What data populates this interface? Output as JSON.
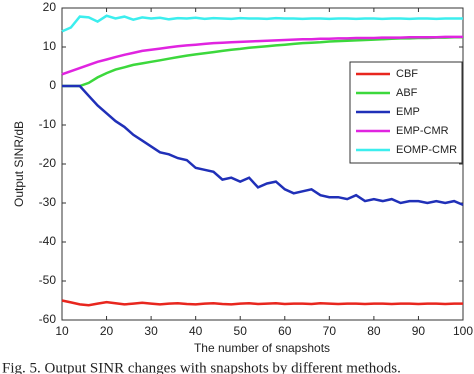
{
  "chart_data": {
    "type": "line",
    "caption": "Fig. 5. Output SINR changes with snapshots by different methods.",
    "xlabel": "The number of snapshots",
    "ylabel": "Output SINR/dB",
    "x": [
      10,
      12,
      14,
      16,
      18,
      20,
      22,
      24,
      26,
      28,
      30,
      32,
      34,
      36,
      38,
      40,
      42,
      44,
      46,
      48,
      50,
      52,
      54,
      56,
      58,
      60,
      62,
      64,
      66,
      68,
      70,
      72,
      74,
      76,
      78,
      80,
      82,
      84,
      86,
      88,
      90,
      92,
      94,
      96,
      98,
      100
    ],
    "xlim": [
      10,
      100
    ],
    "xticks": [
      10,
      20,
      30,
      40,
      50,
      60,
      70,
      80,
      90,
      100
    ],
    "ylim": [
      -60,
      20
    ],
    "yticks": [
      -60,
      -50,
      -40,
      -30,
      -20,
      -10,
      0,
      10,
      20
    ],
    "legend": "upper right",
    "series": [
      {
        "name": "CBF",
        "color": "#e8261e",
        "values": [
          -55,
          -55.5,
          -56,
          -56.2,
          -55.8,
          -55.4,
          -55.7,
          -56,
          -55.8,
          -55.6,
          -55.8,
          -56,
          -55.8,
          -55.7,
          -55.9,
          -56,
          -55.8,
          -55.7,
          -55.9,
          -56,
          -55.8,
          -55.7,
          -55.9,
          -55.8,
          -55.7,
          -55.9,
          -55.8,
          -55.8,
          -55.9,
          -55.7,
          -55.8,
          -55.9,
          -55.8,
          -55.8,
          -55.9,
          -55.8,
          -55.8,
          -55.9,
          -55.8,
          -55.8,
          -55.9,
          -55.8,
          -55.8,
          -55.9,
          -55.8,
          -55.8
        ]
      },
      {
        "name": "ABF",
        "color": "#3cd83c",
        "values": [
          0,
          0,
          0,
          0.8,
          2.2,
          3.3,
          4.2,
          4.8,
          5.4,
          5.8,
          6.2,
          6.6,
          7,
          7.4,
          7.8,
          8.1,
          8.4,
          8.7,
          9,
          9.3,
          9.5,
          9.8,
          10,
          10.2,
          10.4,
          10.6,
          10.8,
          11,
          11.1,
          11.2,
          11.4,
          11.5,
          11.6,
          11.7,
          11.8,
          11.9,
          12,
          12.1,
          12.2,
          12.2,
          12.3,
          12.3,
          12.4,
          12.4,
          12.5,
          12.5
        ]
      },
      {
        "name": "EMP",
        "color": "#2030b8",
        "values": [
          0,
          0,
          0,
          -2.5,
          -5,
          -7,
          -9,
          -10.5,
          -12.5,
          -14,
          -15.5,
          -17,
          -17.5,
          -18.5,
          -19,
          -21,
          -21.5,
          -22,
          -24,
          -23.5,
          -24.5,
          -23.5,
          -26,
          -25,
          -24.5,
          -26.5,
          -27.5,
          -27,
          -26.5,
          -28,
          -28.5,
          -28.5,
          -29,
          -28,
          -29.5,
          -29,
          -29.5,
          -29,
          -30,
          -29.5,
          -29.5,
          -30,
          -29.5,
          -30,
          -29.5,
          -30.5
        ]
      },
      {
        "name": "EMP-CMR",
        "color": "#e024e0",
        "values": [
          3,
          3.8,
          4.6,
          5.4,
          6.2,
          6.8,
          7.4,
          8,
          8.5,
          9,
          9.3,
          9.6,
          9.9,
          10.2,
          10.4,
          10.6,
          10.8,
          11,
          11.1,
          11.2,
          11.3,
          11.4,
          11.5,
          11.6,
          11.7,
          11.8,
          11.9,
          12,
          12,
          12.1,
          12.1,
          12.2,
          12.2,
          12.3,
          12.3,
          12.3,
          12.4,
          12.4,
          12.4,
          12.5,
          12.5,
          12.5,
          12.5,
          12.6,
          12.6,
          12.6
        ]
      },
      {
        "name": "EOMP-CMR",
        "color": "#3ceeee",
        "values": [
          14,
          15,
          17.8,
          17.6,
          16.5,
          18,
          17.3,
          17.8,
          17,
          17.6,
          17.3,
          17.5,
          17.1,
          17.4,
          17.3,
          17.5,
          17.2,
          17.4,
          17.3,
          17.2,
          17.4,
          17.3,
          17.3,
          17.2,
          17.4,
          17.3,
          17.3,
          17.2,
          17.3,
          17.3,
          17.2,
          17.3,
          17.3,
          17.2,
          17.3,
          17.3,
          17.2,
          17.3,
          17.3,
          17.2,
          17.3,
          17.3,
          17.2,
          17.3,
          17.3,
          17.3
        ]
      }
    ]
  }
}
